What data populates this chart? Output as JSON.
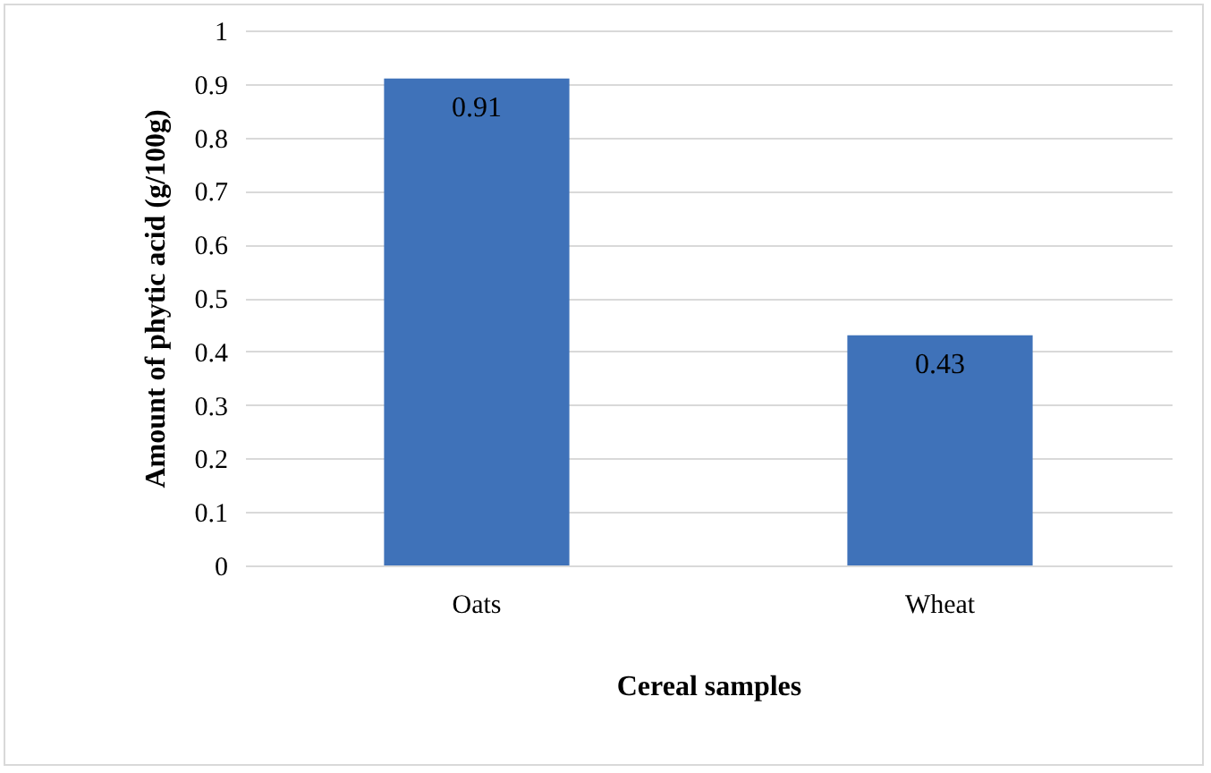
{
  "chart_data": {
    "type": "bar",
    "xlabel": "Cereal samples",
    "ylabel": "Amount of phytic acid (g/100g)",
    "categories": [
      "Oats",
      "Wheat"
    ],
    "values": [
      0.91,
      0.43
    ],
    "color": "#3f72b9",
    "ylim": [
      0,
      1
    ],
    "yticks": [
      0,
      0.1,
      0.2,
      0.3,
      0.4,
      0.5,
      0.6,
      0.7,
      0.8,
      0.9,
      1
    ],
    "grid": "y",
    "data_labels": true
  }
}
